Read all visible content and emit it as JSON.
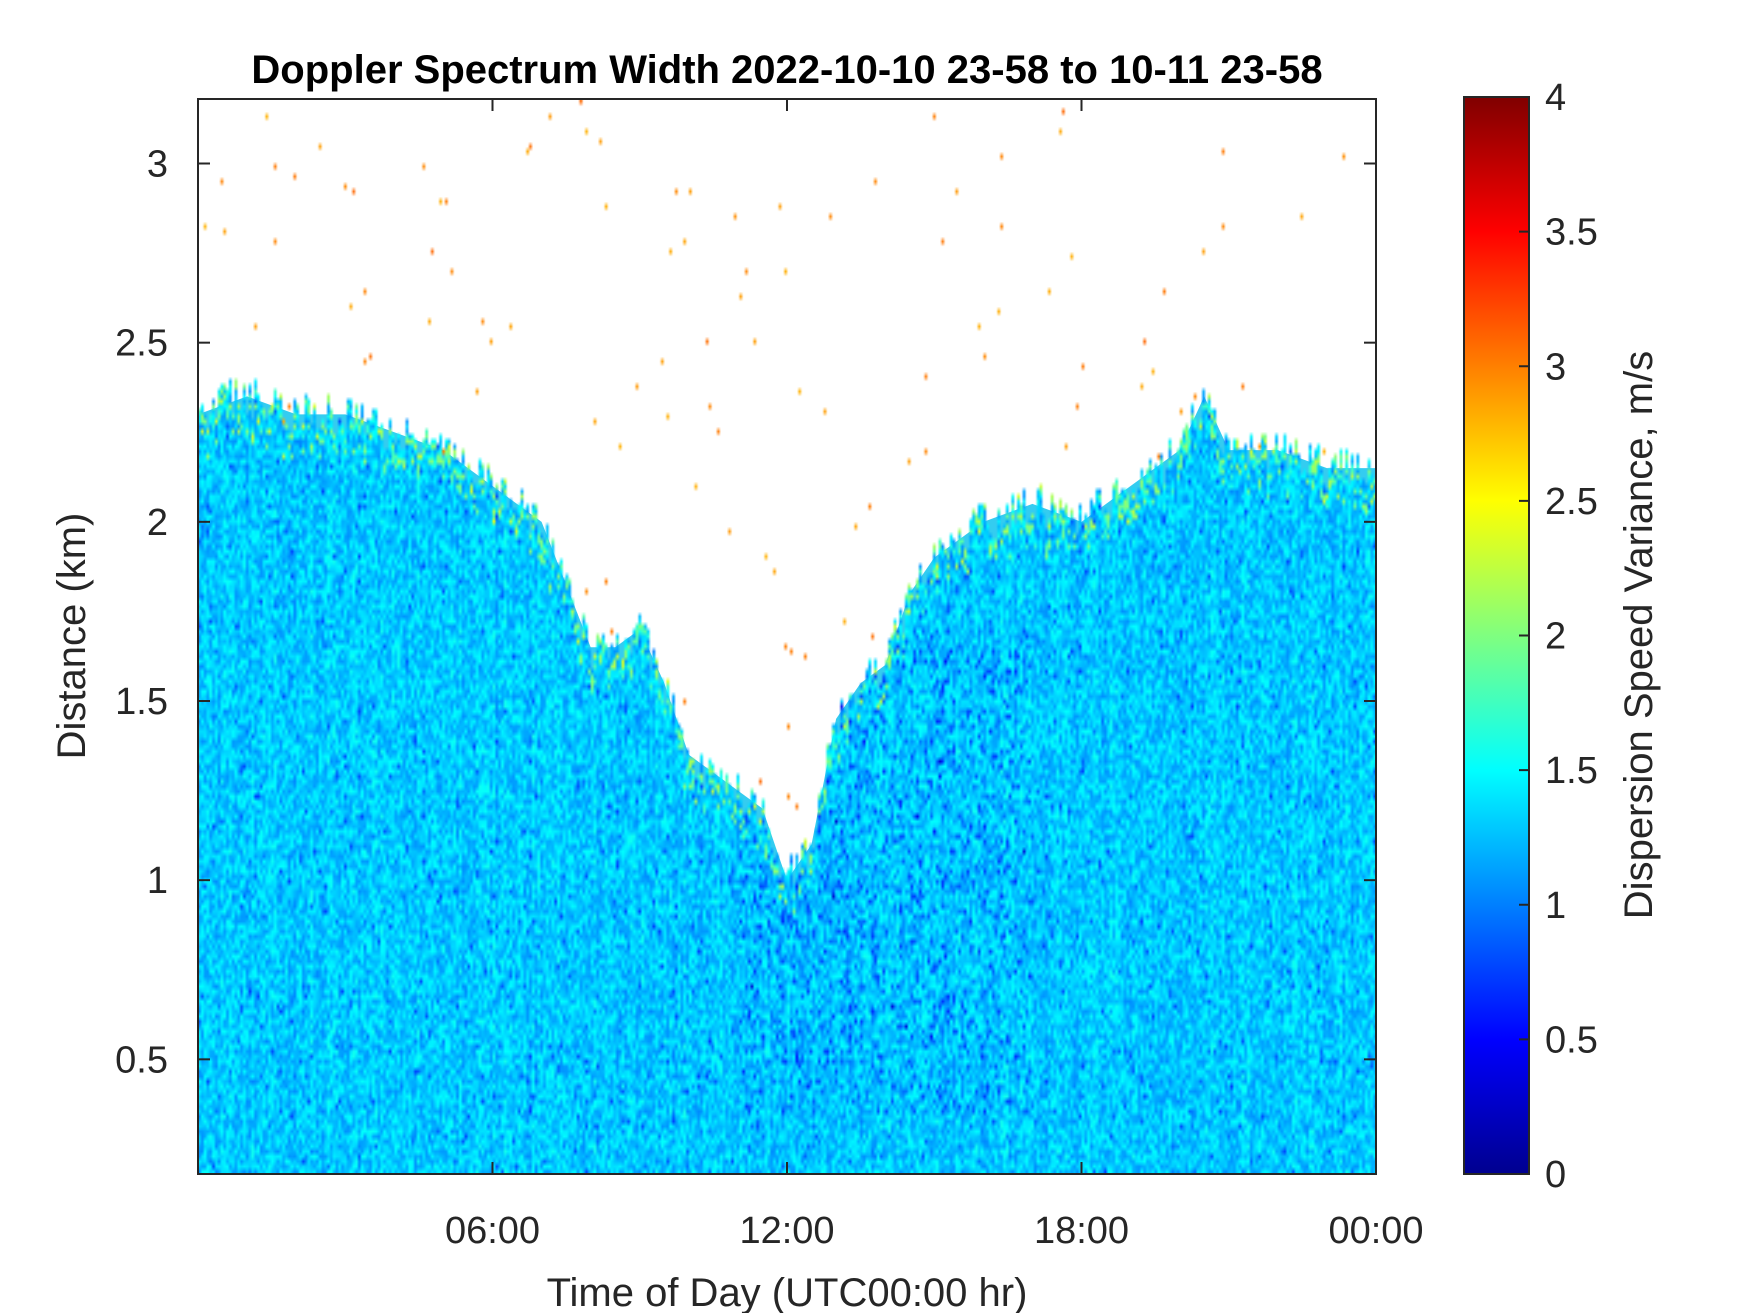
{
  "chart_data": {
    "type": "heatmap",
    "title": "Doppler Spectrum Width 2022-10-10 23-58 to 10-11 23-58",
    "xlabel": "Time of Day (UTC00:00 hr)",
    "ylabel": "Distance (km)",
    "xlim": [
      0,
      24
    ],
    "ylim": [
      0.18,
      3.18
    ],
    "x_ticks": [
      {
        "value": 6,
        "label": "06:00"
      },
      {
        "value": 12,
        "label": "12:00"
      },
      {
        "value": 18,
        "label": "18:00"
      },
      {
        "value": 24,
        "label": "00:00"
      }
    ],
    "y_ticks": [
      {
        "value": 0.5,
        "label": "0.5"
      },
      {
        "value": 1,
        "label": "1"
      },
      {
        "value": 1.5,
        "label": "1.5"
      },
      {
        "value": 2,
        "label": "2"
      },
      {
        "value": 2.5,
        "label": "2.5"
      },
      {
        "value": 3,
        "label": "3"
      }
    ],
    "colorbar": {
      "label": "Dispersion Speed Variance, m/s",
      "colormap": "jet",
      "range": [
        0,
        4
      ],
      "ticks": [
        {
          "value": 0,
          "label": "0"
        },
        {
          "value": 0.5,
          "label": "0.5"
        },
        {
          "value": 1,
          "label": "1"
        },
        {
          "value": 1.5,
          "label": "1.5"
        },
        {
          "value": 2,
          "label": "2"
        },
        {
          "value": 2.5,
          "label": "2.5"
        },
        {
          "value": 3,
          "label": "3"
        },
        {
          "value": 3.5,
          "label": "3.5"
        },
        {
          "value": 4,
          "label": "4"
        }
      ]
    },
    "typical_value": 1.3,
    "signal_top_height_km": {
      "hours": [
        0,
        1,
        2,
        3,
        4,
        5,
        6,
        7,
        8,
        8.5,
        9,
        9.5,
        10,
        10.5,
        11,
        11.5,
        12,
        12.5,
        13,
        13.5,
        14,
        14.5,
        15,
        16,
        17,
        18,
        19,
        20,
        20.5,
        21,
        22,
        23,
        24
      ],
      "top_km": [
        2.3,
        2.35,
        2.3,
        2.3,
        2.25,
        2.2,
        2.1,
        2.0,
        1.65,
        1.65,
        1.7,
        1.55,
        1.35,
        1.3,
        1.25,
        1.2,
        1.0,
        1.1,
        1.45,
        1.55,
        1.6,
        1.8,
        1.9,
        2.0,
        2.05,
        2.0,
        2.1,
        2.2,
        2.35,
        2.2,
        2.2,
        2.15,
        2.15
      ]
    },
    "grid": false
  }
}
